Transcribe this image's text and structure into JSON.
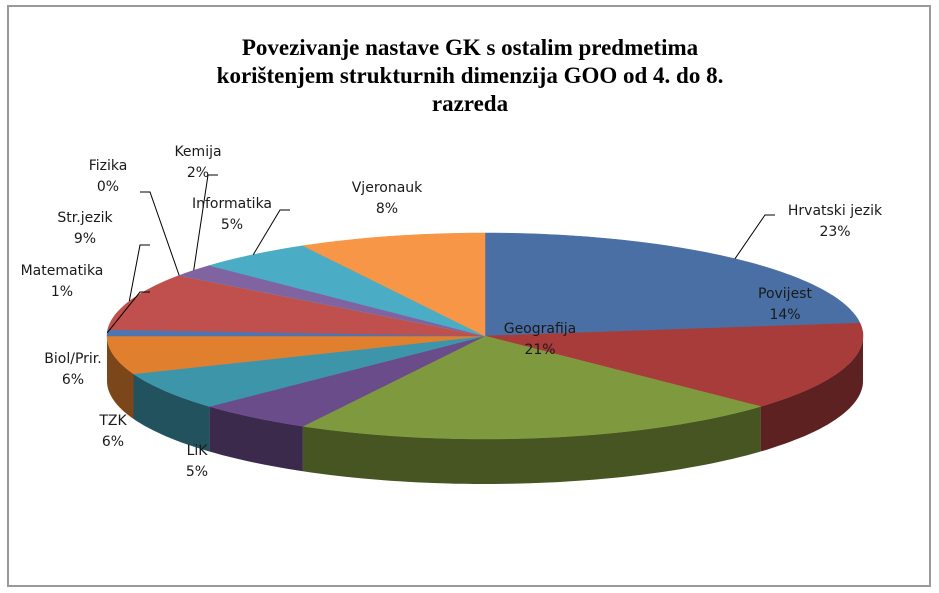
{
  "chart_data": {
    "type": "pie",
    "title": [
      "Povezivanje nastave GK s ostalim predmetima",
      "korištenjem strukturnih dimenzija GOO od 4. do 8.",
      "razreda"
    ],
    "categories": [
      "Hrvatski jezik",
      "Povijest",
      "Geografija",
      "LiK",
      "TZK",
      "Biol/Prir.",
      "Matematika",
      "Str.jezik",
      "Fizika",
      "Kemija",
      "Informatika",
      "Vjeronauk"
    ],
    "values": [
      23,
      14,
      21,
      5,
      6,
      6,
      1,
      9,
      0,
      2,
      5,
      8
    ],
    "value_labels": [
      "23%",
      "14%",
      "21%",
      "5%",
      "6%",
      "6%",
      "1%",
      "9%",
      "0%",
      "2%",
      "5%",
      "8%"
    ],
    "colors": [
      "#4a6fa5",
      "#a83c3a",
      "#7f9a3e",
      "#6b4c8a",
      "#3d95aa",
      "#e07f2e",
      "#4f74b0",
      "#c0504d",
      "#9bbb59",
      "#8064a2",
      "#4bacc6",
      "#f79646"
    ]
  }
}
